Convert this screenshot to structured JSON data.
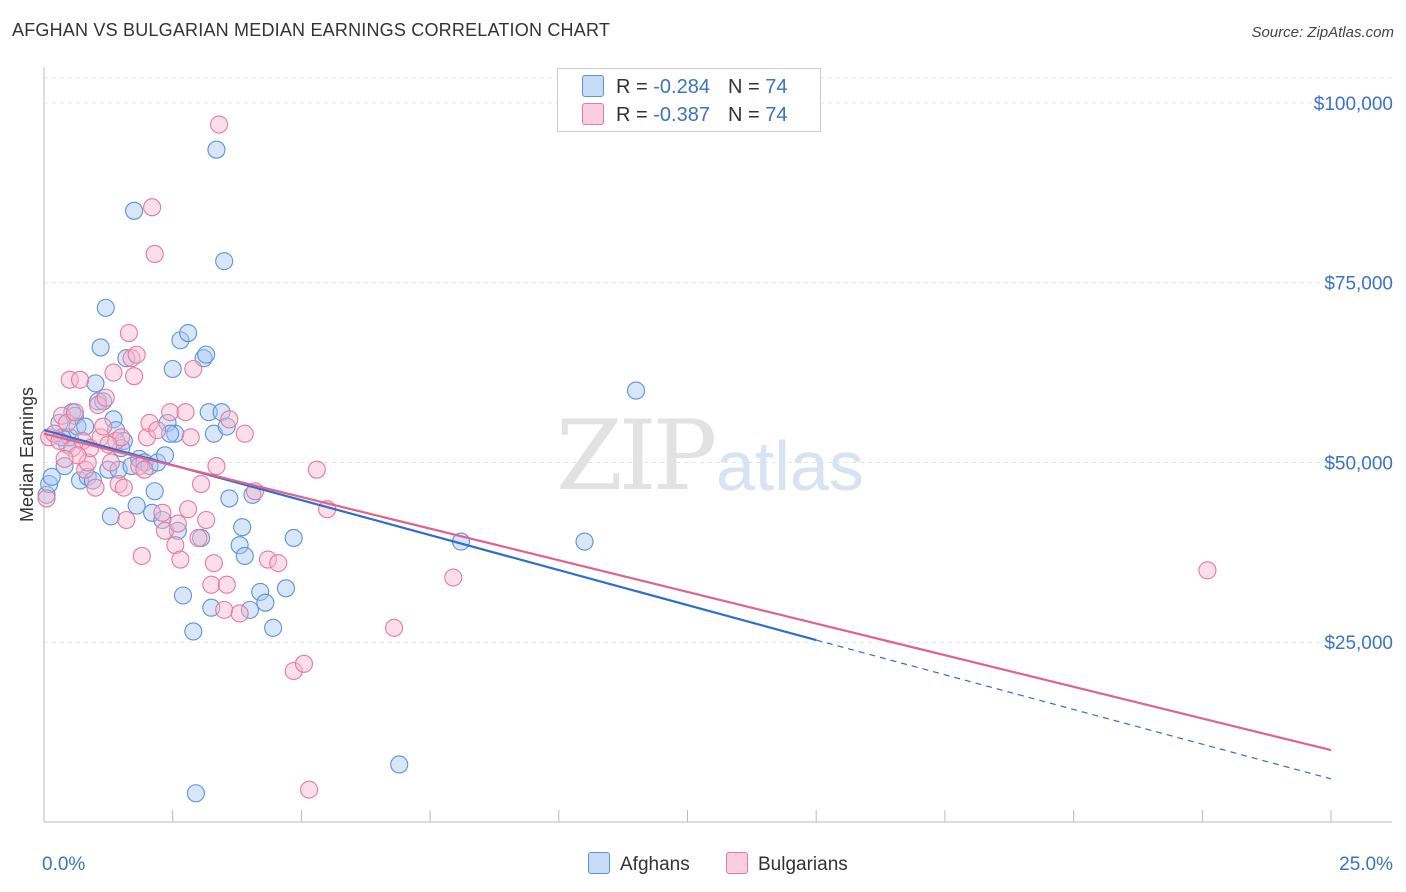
{
  "title": "AFGHAN VS BULGARIAN MEDIAN EARNINGS CORRELATION CHART",
  "source": "Source: ZipAtlas.com",
  "watermark": {
    "zip": "ZIP",
    "atlas": "atlas"
  },
  "legend": {
    "rows": [
      {
        "r_label": "R = ",
        "r_value": "-0.284",
        "n_label": "N = ",
        "n_value": "74",
        "color": "#a9c8f0"
      },
      {
        "r_label": "R = ",
        "r_value": "-0.387",
        "n_label": "N = ",
        "n_value": "74",
        "color": "#f6b8cb"
      }
    ]
  },
  "bottom_legend": [
    {
      "label": "Afghans",
      "color": "#a9c8f0"
    },
    {
      "label": "Bulgarians",
      "color": "#f6b8cb"
    }
  ],
  "chart_data": {
    "type": "scatter",
    "title": "AFGHAN VS BULGARIAN MEDIAN EARNINGS CORRELATION CHART",
    "xlabel": "",
    "ylabel": "Median Earnings",
    "xlim": [
      0,
      25
    ],
    "ylim": [
      0,
      105000
    ],
    "x_tick_labels": [
      {
        "x": 0,
        "label": "0.0%"
      },
      {
        "x": 25,
        "label": "25.0%"
      }
    ],
    "x_minor_ticks": [
      2.5,
      5,
      7.5,
      10,
      12.5,
      15,
      17.5,
      20,
      22.5,
      25
    ],
    "y_ticks": [
      {
        "y": 25000,
        "label": "$25,000"
      },
      {
        "y": 50000,
        "label": "$50,000"
      },
      {
        "y": 75000,
        "label": "$75,000"
      },
      {
        "y": 100000,
        "label": "$100,000"
      }
    ],
    "grid": true,
    "series": [
      {
        "name": "Afghans",
        "color": "#5b93da",
        "fill": "#a9c8f0",
        "line_color": "#2f6fcb",
        "trend": {
          "x0": 0,
          "y0": 54500,
          "x1": 15,
          "y1": 25300,
          "dashed_to_x": 25,
          "dashed_to_y": 6000
        },
        "points": [
          [
            0.05,
            45500
          ],
          [
            0.1,
            47000
          ],
          [
            0.15,
            48000
          ],
          [
            0.3,
            55500
          ],
          [
            0.4,
            49500
          ],
          [
            0.45,
            52500
          ],
          [
            0.5,
            53500
          ],
          [
            0.55,
            57000
          ],
          [
            0.6,
            56500
          ],
          [
            0.65,
            55000
          ],
          [
            0.7,
            47500
          ],
          [
            0.8,
            55000
          ],
          [
            0.85,
            48000
          ],
          [
            1.0,
            61000
          ],
          [
            1.05,
            58500
          ],
          [
            1.1,
            66000
          ],
          [
            1.2,
            71500
          ],
          [
            1.25,
            49000
          ],
          [
            1.3,
            42500
          ],
          [
            1.35,
            56000
          ],
          [
            1.4,
            54500
          ],
          [
            1.45,
            49000
          ],
          [
            1.55,
            53000
          ],
          [
            1.6,
            64500
          ],
          [
            1.7,
            49500
          ],
          [
            1.75,
            85000
          ],
          [
            1.8,
            44000
          ],
          [
            1.85,
            50500
          ],
          [
            1.95,
            50000
          ],
          [
            2.05,
            49500
          ],
          [
            2.1,
            43000
          ],
          [
            2.15,
            46000
          ],
          [
            2.2,
            50000
          ],
          [
            2.3,
            42000
          ],
          [
            2.35,
            51000
          ],
          [
            2.4,
            55500
          ],
          [
            2.5,
            63000
          ],
          [
            2.55,
            54000
          ],
          [
            2.6,
            40500
          ],
          [
            2.65,
            67000
          ],
          [
            2.7,
            31500
          ],
          [
            2.8,
            68000
          ],
          [
            2.9,
            26500
          ],
          [
            2.95,
            4000
          ],
          [
            3.05,
            39500
          ],
          [
            3.1,
            64500
          ],
          [
            3.15,
            65000
          ],
          [
            3.2,
            57000
          ],
          [
            3.25,
            29800
          ],
          [
            3.3,
            54000
          ],
          [
            3.35,
            93500
          ],
          [
            3.45,
            57000
          ],
          [
            3.5,
            78000
          ],
          [
            3.55,
            55000
          ],
          [
            3.6,
            45000
          ],
          [
            3.8,
            38500
          ],
          [
            3.85,
            41000
          ],
          [
            3.9,
            37000
          ],
          [
            4.0,
            29500
          ],
          [
            4.05,
            45500
          ],
          [
            4.2,
            32000
          ],
          [
            4.3,
            30500
          ],
          [
            4.45,
            27000
          ],
          [
            4.7,
            32500
          ],
          [
            4.85,
            39500
          ],
          [
            6.9,
            8000
          ],
          [
            8.1,
            39000
          ],
          [
            10.5,
            39000
          ],
          [
            11.5,
            60000
          ],
          [
            1.5,
            52000
          ],
          [
            0.95,
            47500
          ],
          [
            2.45,
            54000
          ],
          [
            0.35,
            53500
          ],
          [
            1.15,
            58500
          ]
        ]
      },
      {
        "name": "Bulgarians",
        "color": "#e8799e",
        "fill": "#f6b8cb",
        "line_color": "#e0628f",
        "trend": {
          "x0": 0,
          "y0": 54000,
          "x1": 25,
          "y1": 10000
        },
        "points": [
          [
            0.05,
            45000
          ],
          [
            0.1,
            53500
          ],
          [
            0.2,
            54000
          ],
          [
            0.3,
            53000
          ],
          [
            0.35,
            56500
          ],
          [
            0.45,
            55500
          ],
          [
            0.5,
            61500
          ],
          [
            0.55,
            52000
          ],
          [
            0.6,
            57000
          ],
          [
            0.7,
            61500
          ],
          [
            0.75,
            53000
          ],
          [
            0.8,
            49000
          ],
          [
            0.85,
            50000
          ],
          [
            0.9,
            52000
          ],
          [
            1.0,
            46500
          ],
          [
            1.05,
            58000
          ],
          [
            1.1,
            53500
          ],
          [
            1.15,
            55000
          ],
          [
            1.2,
            59000
          ],
          [
            1.3,
            50000
          ],
          [
            1.35,
            62500
          ],
          [
            1.4,
            53000
          ],
          [
            1.45,
            47000
          ],
          [
            1.5,
            53500
          ],
          [
            1.55,
            46500
          ],
          [
            1.6,
            42000
          ],
          [
            1.65,
            68000
          ],
          [
            1.7,
            64500
          ],
          [
            1.75,
            62000
          ],
          [
            1.8,
            65000
          ],
          [
            1.85,
            49500
          ],
          [
            1.9,
            37000
          ],
          [
            2.0,
            53500
          ],
          [
            2.05,
            55500
          ],
          [
            2.1,
            85500
          ],
          [
            2.15,
            79000
          ],
          [
            2.2,
            54500
          ],
          [
            2.3,
            43000
          ],
          [
            2.35,
            40500
          ],
          [
            2.45,
            57000
          ],
          [
            2.55,
            38500
          ],
          [
            2.65,
            36500
          ],
          [
            2.75,
            57000
          ],
          [
            2.8,
            43500
          ],
          [
            2.9,
            63000
          ],
          [
            3.0,
            39500
          ],
          [
            3.05,
            47000
          ],
          [
            3.15,
            42000
          ],
          [
            3.25,
            33000
          ],
          [
            3.3,
            36000
          ],
          [
            3.35,
            49500
          ],
          [
            3.4,
            97000
          ],
          [
            3.5,
            29500
          ],
          [
            3.55,
            33000
          ],
          [
            3.6,
            56000
          ],
          [
            3.8,
            29000
          ],
          [
            3.9,
            54000
          ],
          [
            4.1,
            46000
          ],
          [
            4.35,
            36500
          ],
          [
            4.55,
            36000
          ],
          [
            4.85,
            21000
          ],
          [
            5.05,
            22000
          ],
          [
            5.15,
            4500
          ],
          [
            5.3,
            49000
          ],
          [
            5.5,
            43500
          ],
          [
            6.8,
            27000
          ],
          [
            7.95,
            34000
          ],
          [
            22.6,
            35000
          ],
          [
            1.25,
            52500
          ],
          [
            2.6,
            41500
          ],
          [
            0.65,
            51000
          ],
          [
            1.95,
            49000
          ],
          [
            2.85,
            53500
          ],
          [
            0.4,
            50500
          ]
        ]
      }
    ]
  }
}
